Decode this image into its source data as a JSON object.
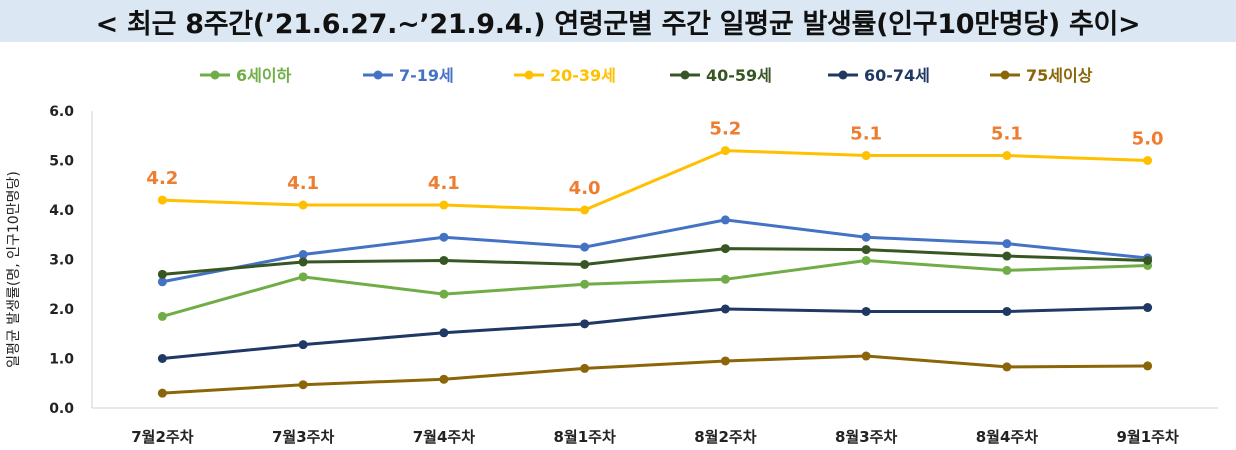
{
  "title": "< 최근 8주간(’21.6.27.~’21.9.4.) 연령군별 주간 일평균 발생률(인구10만명당) 추이>",
  "chart_data": {
    "type": "line",
    "ylabel": "일평균 발생률(명, 인구10만명당)",
    "xlabel": "",
    "ylim": [
      0,
      6
    ],
    "yticks": [
      "0.0",
      "1.0",
      "2.0",
      "3.0",
      "4.0",
      "5.0",
      "6.0"
    ],
    "grid": false,
    "legend": "top",
    "categories": [
      "7월2주차",
      "7월3주차",
      "7월4주차",
      "8월1주차",
      "8월2주차",
      "8월3주차",
      "8월4주차",
      "9월1주차"
    ],
    "series": [
      {
        "name": "6세이하",
        "color": "#70ad47",
        "values": [
          1.85,
          2.65,
          2.3,
          2.5,
          2.6,
          2.98,
          2.78,
          2.88
        ]
      },
      {
        "name": "7-19세",
        "color": "#4472c4",
        "values": [
          2.55,
          3.1,
          3.45,
          3.25,
          3.8,
          3.45,
          3.32,
          3.03
        ]
      },
      {
        "name": "20-39세",
        "color": "#ffc000",
        "values": [
          4.2,
          4.1,
          4.1,
          4.0,
          5.2,
          5.1,
          5.1,
          5.0
        ],
        "labels": [
          "4.2",
          "4.1",
          "4.1",
          "4.0",
          "5.2",
          "5.1",
          "5.1",
          "5.0"
        ],
        "label_color": "#ed7d31"
      },
      {
        "name": "40-59세",
        "color": "#375623",
        "values": [
          2.7,
          2.95,
          2.98,
          2.9,
          3.22,
          3.2,
          3.07,
          2.98
        ]
      },
      {
        "name": "60-74세",
        "color": "#1f3864",
        "values": [
          1.0,
          1.28,
          1.52,
          1.7,
          2.0,
          1.95,
          1.95,
          2.03
        ]
      },
      {
        "name": "75세이상",
        "color": "#8b6508",
        "values": [
          0.3,
          0.47,
          0.58,
          0.8,
          0.95,
          1.05,
          0.83,
          0.85
        ]
      }
    ]
  }
}
